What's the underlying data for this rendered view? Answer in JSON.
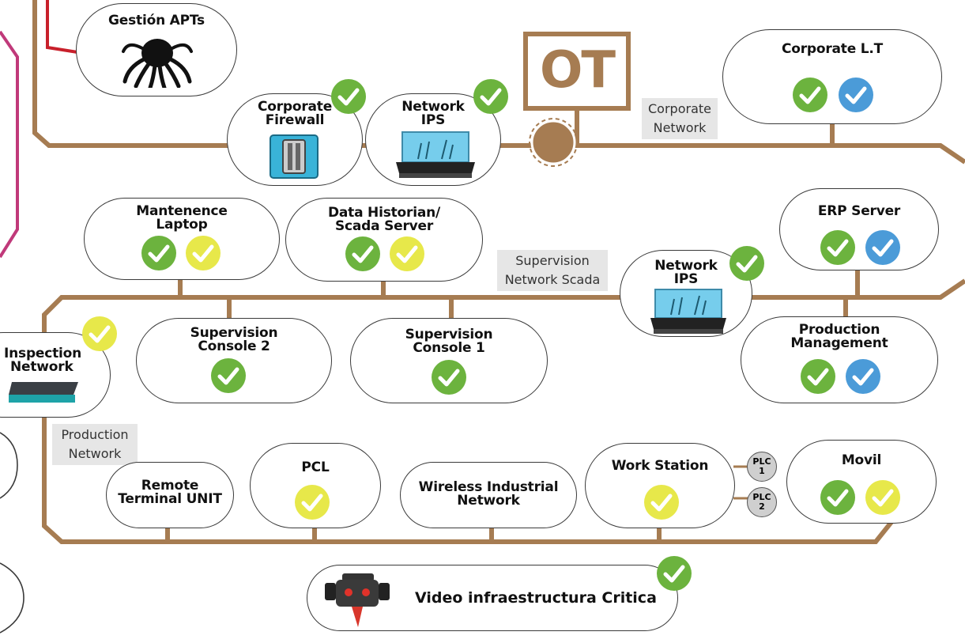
{
  "nodes": {
    "gestion_apts": {
      "title": "Gestión APTs"
    },
    "corporate_firewall": {
      "title_l1": "Corporate",
      "title_l2": "Firewall"
    },
    "network_ips_top": {
      "title_l1": "Network",
      "title_l2": "IPS"
    },
    "corporate_lt": {
      "title": "Corporate L.T"
    },
    "mantenence_laptop": {
      "title_l1": "Mantenence",
      "title_l2": "Laptop"
    },
    "data_historian": {
      "title_l1": "Data Historian/",
      "title_l2": "Scada Server"
    },
    "network_ips_mid": {
      "title_l1": "Network",
      "title_l2": "IPS"
    },
    "erp_server": {
      "title": "ERP Server"
    },
    "inspection_network": {
      "title_l1": "Inspection",
      "title_l2": "Network"
    },
    "supervision_console_2": {
      "title_l1": "Supervision",
      "title_l2": "Console 2"
    },
    "supervision_console_1": {
      "title_l1": "Supervision",
      "title_l2": "Console 1"
    },
    "production_management": {
      "title_l1": "Production",
      "title_l2": "Management"
    },
    "remote_terminal_unit": {
      "title_l1": "Remote",
      "title_l2": "Terminal UNIT"
    },
    "pcl": {
      "title": "PCL"
    },
    "wireless_industrial": {
      "title_l1": "Wireless Industrial",
      "title_l2": "Network"
    },
    "work_station": {
      "title": "Work Station"
    },
    "movil": {
      "title": "Movil"
    },
    "video": {
      "title": "Video infraestructura Critica"
    }
  },
  "ot_label": "OT",
  "network_labels": {
    "corporate_l1": "Corporate",
    "corporate_l2": "Network",
    "supervision_l1": "Supervision",
    "supervision_l2": "Network Scada",
    "production_l1": "Production",
    "production_l2": "Network"
  },
  "plc": {
    "plc1_l1": "PLC",
    "plc1_l2": "1",
    "plc2_l1": "PLC",
    "plc2_l2": "2"
  },
  "colors": {
    "wire": "#a67c52",
    "check_green": "#6cb33e",
    "check_yellow": "#e7e84a",
    "check_blue": "#4b9bd8",
    "red_line": "#c8202b",
    "magenta_line": "#c0397a"
  },
  "icons": [
    "octopus-icon",
    "firewall-icon",
    "ips-appliance-icon",
    "network-switch-icon",
    "robot-camera-icon",
    "check-icon"
  ]
}
